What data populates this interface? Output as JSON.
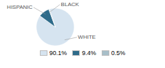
{
  "chart_data": {
    "type": "pie",
    "categories": [
      "WHITE",
      "HISPANIC",
      "BLACK"
    ],
    "values": [
      90.1,
      9.4,
      0.5
    ],
    "value_labels": [
      "90.1%",
      "9.4%",
      "0.5%"
    ],
    "colors": [
      "#d6e4f0",
      "#2e6b8a",
      "#a8bfc9"
    ],
    "legend": "bottom"
  }
}
